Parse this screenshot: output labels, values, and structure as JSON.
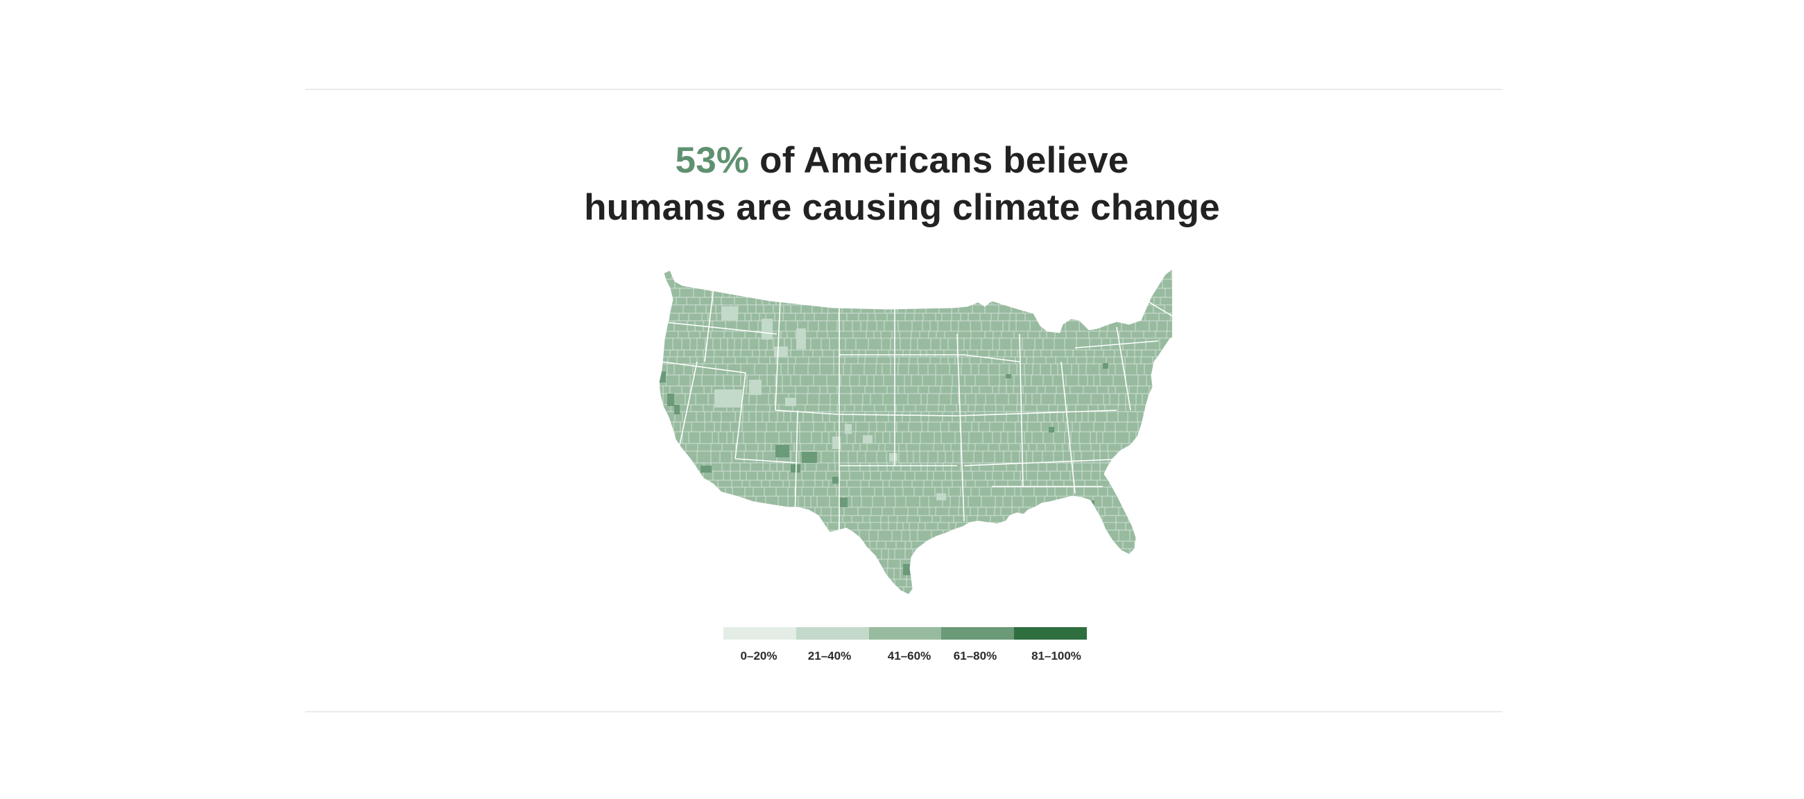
{
  "headline": {
    "stat": "53%",
    "line1_rest": " of Americans believe",
    "line2": "humans are causing climate change"
  },
  "colors": {
    "accent": "#5f9170",
    "text": "#222222",
    "state_border": "#ffffff",
    "county_line": "#d9e6dc"
  },
  "map": {
    "subject": "contiguous United States, county-level share believing humans cause climate change",
    "default_bin": 2
  },
  "legend": {
    "bins": [
      {
        "label": "0–20%",
        "color": "#e3ede6"
      },
      {
        "label": "21–40%",
        "color": "#c3d9c9"
      },
      {
        "label": "41–60%",
        "color": "#98bba0"
      },
      {
        "label": "61–80%",
        "color": "#6a9a78"
      },
      {
        "label": "81–100%",
        "color": "#2f6e3f"
      }
    ]
  }
}
